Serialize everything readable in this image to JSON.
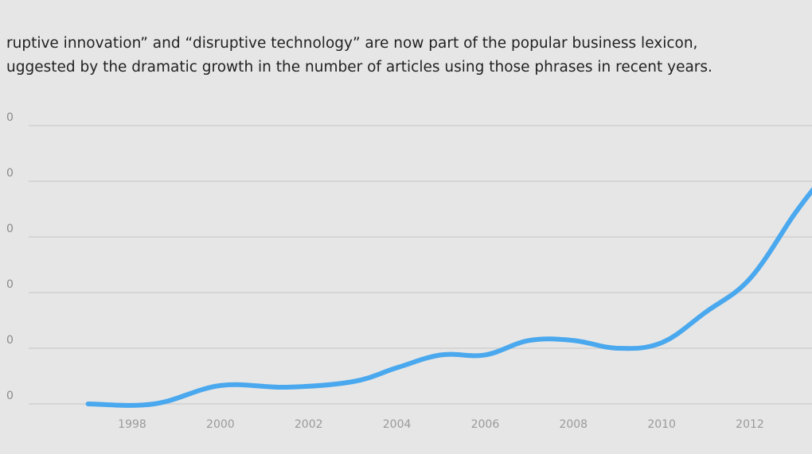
{
  "caption": {
    "line1": "ruptive innovation” and “disruptive technology” are now part of the popular business lexicon,",
    "line2": "uggested by the dramatic growth in the number of articles using those phrases in recent years."
  },
  "colors": {
    "background": "#e6e6e6",
    "line": "#4aa8ee",
    "grid": "#cfcfcf",
    "text": "#222222",
    "tick": "#9a9a9a"
  },
  "chart_data": {
    "type": "line",
    "title": "",
    "xlabel": "",
    "ylabel": "",
    "grid": true,
    "x_ticks": [
      "1998",
      "2000",
      "2002",
      "2004",
      "2006",
      "2008",
      "2010",
      "2012"
    ],
    "y_tick_labels": [
      "0",
      "0",
      "0",
      "0",
      "0",
      "0"
    ],
    "xlim": [
      1996.5,
      2013.5
    ],
    "ylim": [
      0,
      500
    ],
    "series": [
      {
        "x": [
          1997,
          1998.5,
          2000,
          2001.5,
          2003,
          2004,
          2005,
          2006,
          2007,
          2008,
          2009,
          2010,
          2011,
          2012,
          2013,
          2013.5
        ],
        "values": [
          0,
          0,
          33,
          30,
          40,
          65,
          88,
          88,
          114,
          114,
          100,
          110,
          165,
          225,
          340,
          392
        ]
      }
    ]
  }
}
